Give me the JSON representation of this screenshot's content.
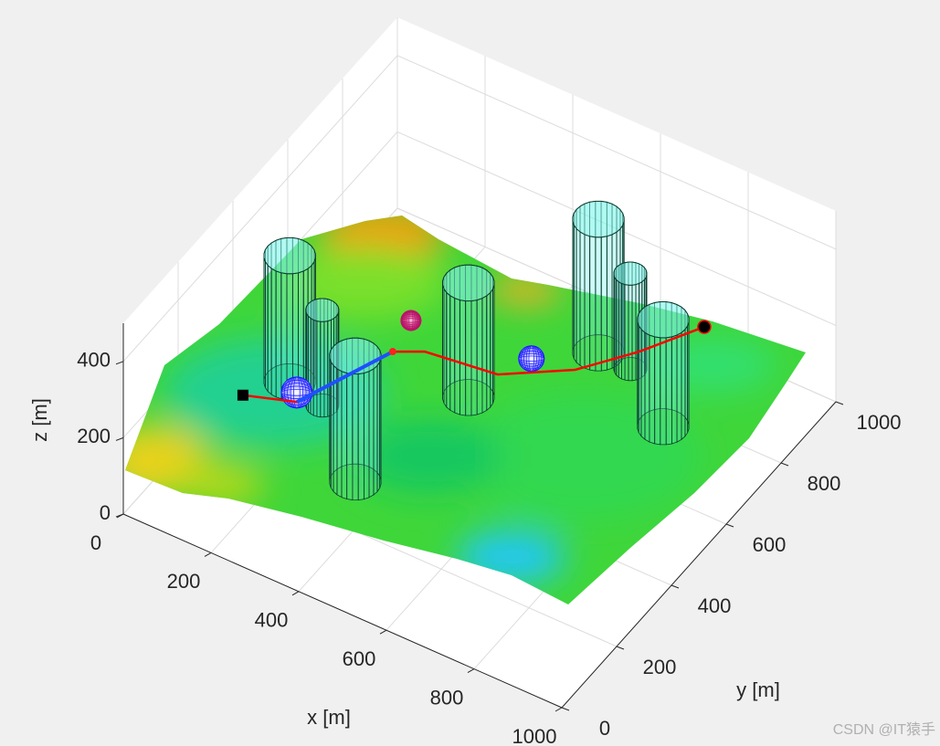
{
  "chart_data": {
    "type": "surface3d",
    "xlabel": "x [m]",
    "ylabel": "y [m]",
    "zlabel": "z [m]",
    "xlim": [
      0,
      1000
    ],
    "ylim": [
      0,
      1000
    ],
    "zlim": [
      0,
      500
    ],
    "xticks": [
      0,
      200,
      400,
      600,
      800,
      1000
    ],
    "yticks": [
      0,
      200,
      400,
      600,
      800,
      1000
    ],
    "zticks": [
      0,
      200,
      400
    ],
    "grid": true,
    "obstacles": {
      "color": "#7ff5ec",
      "x": [
        162,
        250,
        416,
        477,
        624,
        700,
        838
      ],
      "y": [
        348,
        326,
        181,
        496,
        735,
        730,
        629
      ],
      "r": [
        50,
        32,
        50,
        50,
        50,
        32,
        50
      ],
      "zmin": [
        150,
        150,
        150,
        150,
        150,
        150,
        150
      ],
      "zmax": [
        480,
        400,
        480,
        450,
        500,
        400,
        430
      ]
    },
    "threats": {
      "colors": [
        "#1a1aff",
        "#c0106a",
        "#1a1aff"
      ],
      "x": [
        273,
        371,
        607
      ],
      "y": [
        196,
        456,
        518
      ],
      "z": [
        300,
        330,
        300
      ],
      "r": [
        34,
        22,
        28
      ]
    },
    "paths": [
      {
        "color": "#ff0000",
        "x": [
          189,
          287,
          370,
          422,
          575,
          695,
          773,
          843
        ],
        "y": [
          134,
          174,
          391,
          424,
          446,
          537,
          646,
          771
        ],
        "z": [
          300,
          300,
          300,
          300,
          300,
          300,
          300,
          300
        ]
      },
      {
        "color": "#1f4fff",
        "x": [
          287,
          370
        ],
        "y": [
          174,
          391
        ],
        "z": [
          300,
          300
        ]
      }
    ],
    "watermark": "CSDN @IT猿手"
  }
}
